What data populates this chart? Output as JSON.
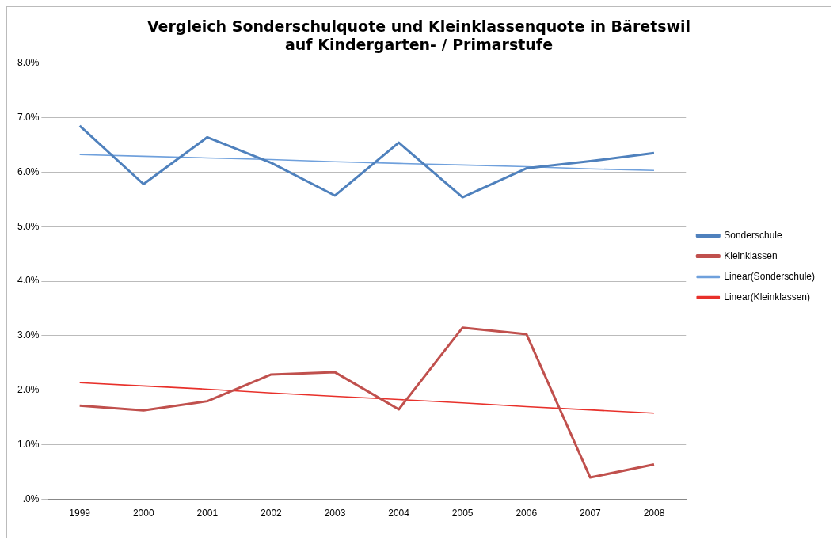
{
  "chart_data": {
    "type": "line",
    "title": "Vergleich Sonderschulquote und Kleinklassenquote in Bäretswil\nauf Kindergarten- / Primarstufe",
    "categories": [
      "1999",
      "2000",
      "2001",
      "2002",
      "2003",
      "2004",
      "2005",
      "2006",
      "2007",
      "2008"
    ],
    "series": [
      {
        "name": "Sonderschule",
        "color": "#4f81bd",
        "values": [
          6.85,
          5.78,
          6.64,
          6.17,
          5.57,
          6.54,
          5.54,
          6.07,
          6.2,
          6.35
        ]
      },
      {
        "name": "Kleinklassen",
        "color": "#c0504d",
        "values": [
          1.72,
          1.63,
          1.8,
          2.29,
          2.33,
          1.65,
          3.15,
          3.03,
          0.4,
          0.64
        ]
      },
      {
        "name": "Linear(Sonderschule)",
        "color": "#6fa0dc",
        "values": [
          6.32,
          6.29,
          6.26,
          6.23,
          6.19,
          6.16,
          6.13,
          6.1,
          6.06,
          6.03
        ]
      },
      {
        "name": "Linear(Kleinklassen)",
        "color": "#e8302a",
        "values": [
          2.14,
          2.08,
          2.02,
          1.95,
          1.89,
          1.83,
          1.77,
          1.7,
          1.64,
          1.58
        ]
      }
    ],
    "ylim": [
      0,
      8
    ],
    "yticks": [
      {
        "value": 0,
        "label": ".0%"
      },
      {
        "value": 1,
        "label": "1.0%"
      },
      {
        "value": 2,
        "label": "2.0%"
      },
      {
        "value": 3,
        "label": "3.0%"
      },
      {
        "value": 4,
        "label": "4.0%"
      },
      {
        "value": 5,
        "label": "5.0%"
      },
      {
        "value": 6,
        "label": "6.0%"
      },
      {
        "value": 7,
        "label": "7.0%"
      },
      {
        "value": 8,
        "label": "8.0%"
      }
    ],
    "grid": "y",
    "legend": "right",
    "marker": "none",
    "line_style": "solid"
  }
}
